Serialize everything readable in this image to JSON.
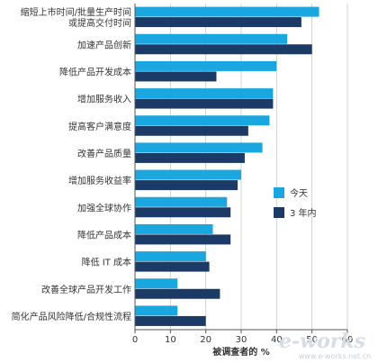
{
  "chart_data": {
    "type": "bar",
    "orientation": "horizontal",
    "categories": [
      [
        "缩短上市时间/批量生产时间",
        "或提高交付时间"
      ],
      [
        "加速产品创新"
      ],
      [
        "降低产品开发成本"
      ],
      [
        "增加服务收入"
      ],
      [
        "提高客户满意度"
      ],
      [
        "改善产品质量"
      ],
      [
        "增加服务收益率"
      ],
      [
        "加强全球协作"
      ],
      [
        "降低产品成本"
      ],
      [
        "降低 IT 成本"
      ],
      [
        "改善全球产品开发工作"
      ],
      [
        "简化产品风险降低/合规性流程"
      ]
    ],
    "series": [
      {
        "name": "今天",
        "color": "#1aa7e0",
        "values": [
          52,
          43,
          40,
          39,
          38,
          36,
          30,
          26,
          22,
          20,
          12,
          12
        ]
      },
      {
        "name": "3 年内",
        "color": "#1b3a66",
        "values": [
          47,
          50,
          23,
          39,
          32,
          31,
          29,
          27,
          27,
          21,
          24,
          20
        ]
      }
    ],
    "xlabel": "被调查者的 %",
    "xlim": [
      0,
      60
    ],
    "xticks": [
      0,
      10,
      20,
      30,
      40,
      50,
      60
    ],
    "grid": "vertical",
    "legend_position": "right"
  },
  "watermark": {
    "logo": "e-works",
    "url": "www.e-works.net.cn"
  }
}
